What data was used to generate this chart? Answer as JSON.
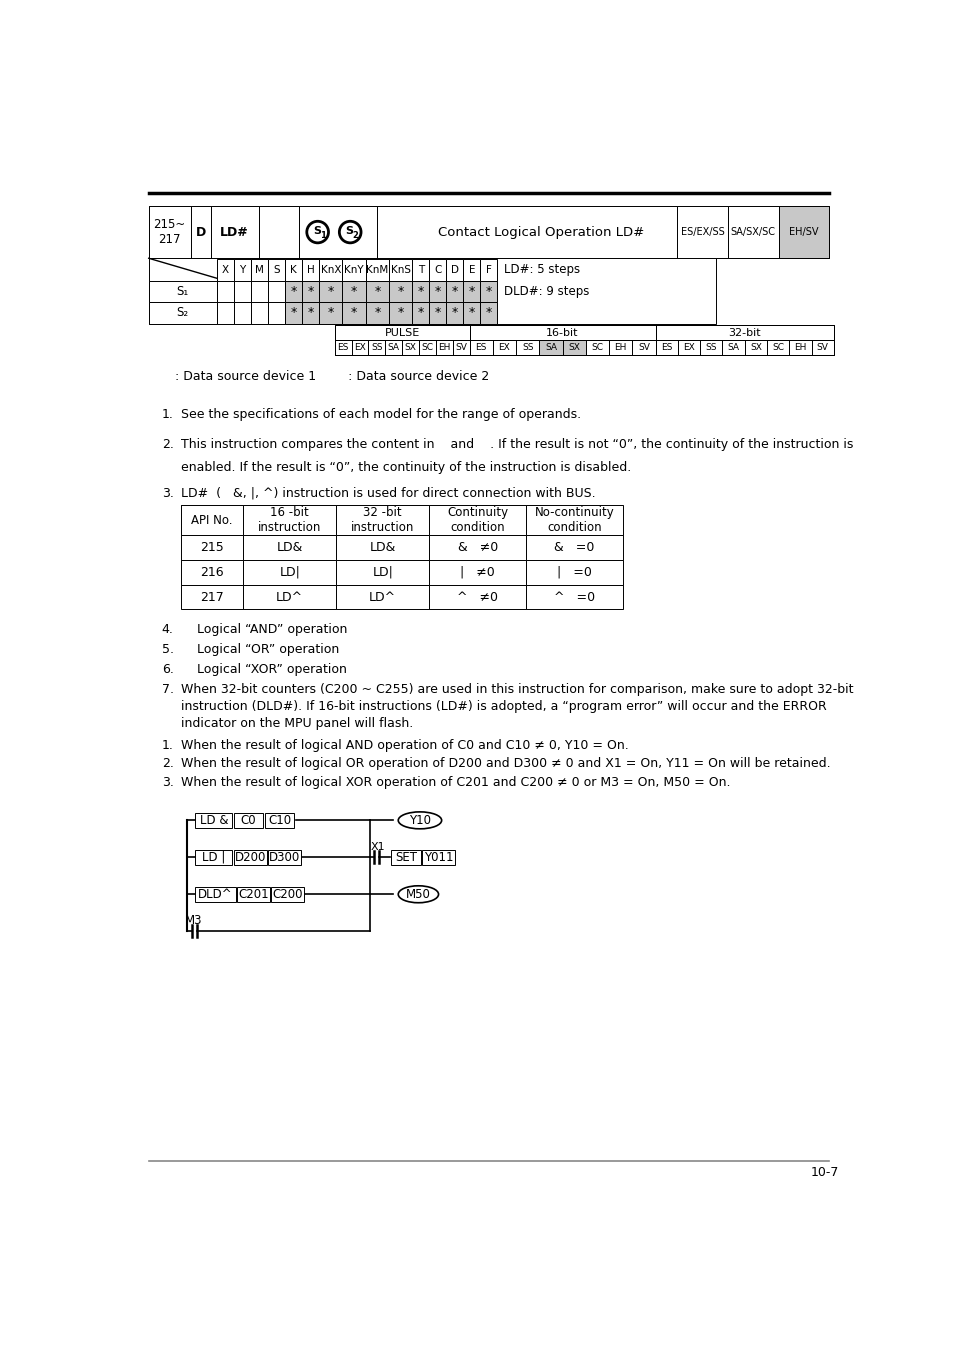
{
  "page_number": "10-7",
  "colors": {
    "background": "#ffffff",
    "text": "#000000",
    "shaded_cell": "#c8c8c8",
    "border": "#000000"
  },
  "header": {
    "api": "215~\n217",
    "type": "D",
    "instr": "LD#",
    "desc": "Contact Logical Operation LD#",
    "compat": [
      "ES/EX/SS",
      "SA/SX/SC",
      "EH/SV"
    ]
  },
  "op_cols": [
    "X",
    "Y",
    "M",
    "S",
    "K",
    "H",
    "KnX",
    "KnY",
    "KnM",
    "KnS",
    "T",
    "C",
    "D",
    "E",
    "F"
  ],
  "op_col_w": [
    22,
    22,
    22,
    22,
    22,
    22,
    30,
    30,
    30,
    30,
    22,
    22,
    22,
    22,
    22
  ],
  "s1_marks": [
    false,
    false,
    false,
    false,
    true,
    true,
    true,
    true,
    true,
    true,
    true,
    true,
    true,
    true,
    true
  ],
  "s2_marks": [
    false,
    false,
    false,
    false,
    true,
    true,
    true,
    true,
    true,
    true,
    true,
    true,
    true,
    true,
    true
  ],
  "pulse_cells": [
    "ES",
    "EX",
    "SS",
    "SA",
    "SX",
    "SC",
    "EH",
    "SV"
  ],
  "api_rows": [
    [
      "215",
      "LD&",
      "LD&",
      "&   ≠0",
      "&   =0"
    ],
    [
      "216",
      "LD|",
      "LD|",
      "|   ≠0",
      "|   =0"
    ],
    [
      "217",
      "LD^",
      "LD^",
      "^   ≠0",
      "^   =0"
    ]
  ]
}
